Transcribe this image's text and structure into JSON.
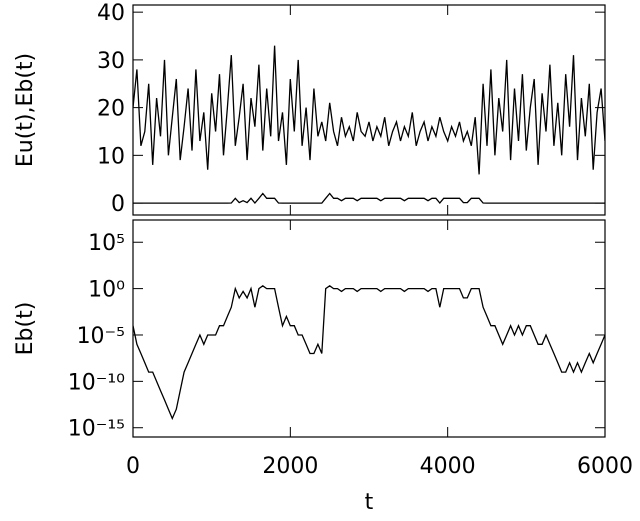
{
  "chart_data": [
    {
      "type": "line",
      "ylabel": "Eu(t),Eb(t)",
      "xlim": [
        0,
        6000
      ],
      "xticks": [
        0,
        2000,
        4000,
        6000
      ],
      "ylim": [
        -2.5,
        41.5
      ],
      "yticks": [
        0,
        10,
        20,
        30,
        40
      ],
      "log": false,
      "x": [
        0,
        50,
        100,
        150,
        200,
        250,
        300,
        350,
        400,
        450,
        500,
        550,
        600,
        650,
        700,
        750,
        800,
        850,
        900,
        950,
        1000,
        1050,
        1100,
        1150,
        1200,
        1250,
        1300,
        1350,
        1400,
        1450,
        1500,
        1550,
        1600,
        1650,
        1700,
        1750,
        1800,
        1850,
        1900,
        1950,
        2000,
        2050,
        2100,
        2150,
        2200,
        2250,
        2300,
        2350,
        2400,
        2450,
        2500,
        2550,
        2600,
        2650,
        2700,
        2750,
        2800,
        2850,
        2900,
        2950,
        3000,
        3050,
        3100,
        3150,
        3200,
        3250,
        3300,
        3350,
        3400,
        3450,
        3500,
        3550,
        3600,
        3650,
        3700,
        3750,
        3800,
        3850,
        3900,
        3950,
        4000,
        4050,
        4100,
        4150,
        4200,
        4250,
        4300,
        4350,
        4400,
        4450,
        4500,
        4550,
        4600,
        4650,
        4700,
        4750,
        4800,
        4850,
        4900,
        4950,
        5000,
        5050,
        5100,
        5150,
        5200,
        5250,
        5300,
        5350,
        5400,
        5450,
        5500,
        5550,
        5600,
        5650,
        5700,
        5750,
        5800,
        5850,
        5900,
        5950,
        6000
      ],
      "series": [
        {
          "name": "Eu",
          "color": "#000000",
          "values": [
            20,
            28,
            12,
            15,
            25,
            8,
            22,
            14,
            30,
            10,
            18,
            26,
            9,
            16,
            24,
            11,
            28,
            13,
            19,
            7,
            23,
            15,
            27,
            10,
            20,
            31,
            12,
            18,
            25,
            9,
            22,
            16,
            29,
            11,
            24,
            14,
            33,
            13,
            19,
            8,
            26,
            15,
            30,
            12,
            20,
            9,
            24,
            14,
            17,
            13,
            21,
            15,
            12,
            18,
            14,
            16,
            13,
            19,
            15,
            14,
            17,
            13,
            16,
            14,
            18,
            12,
            15,
            17,
            13,
            16,
            14,
            19,
            12,
            15,
            17,
            13,
            16,
            14,
            18,
            15,
            13,
            16,
            14,
            17,
            13,
            15,
            12,
            18,
            6,
            25,
            12,
            28,
            10,
            22,
            15,
            30,
            9,
            24,
            13,
            27,
            11,
            20,
            26,
            8,
            23,
            15,
            29,
            12,
            21,
            10,
            27,
            16,
            31,
            9,
            22,
            14,
            25,
            7,
            19,
            24,
            13
          ]
        },
        {
          "name": "Eb",
          "color": "#000000",
          "values": [
            0.0001,
            1e-06,
            1e-07,
            1e-08,
            1e-09,
            1e-09,
            1e-10,
            1e-11,
            1e-12,
            1e-13,
            1e-14,
            1e-13,
            1e-11,
            1e-09,
            1e-08,
            1e-07,
            1e-06,
            1e-05,
            1e-06,
            1e-05,
            1e-05,
            1e-05,
            0.0001,
            0.0001,
            0.001,
            0.01,
            1,
            0.1,
            0.5,
            0.1,
            1,
            0.01,
            1,
            2,
            1,
            1,
            1,
            0.01,
            0.0001,
            0.001,
            0.0001,
            0.0001,
            1e-05,
            1e-05,
            1e-06,
            1e-07,
            1e-07,
            1e-06,
            1e-07,
            1,
            2,
            1,
            1,
            0.5,
            1,
            1,
            1,
            0.5,
            1,
            1,
            1,
            1,
            1,
            0.5,
            1,
            1,
            1,
            1,
            1,
            0.5,
            1,
            1,
            1,
            1,
            1,
            0.5,
            1,
            1,
            0.01,
            1,
            1,
            1,
            1,
            1,
            0.1,
            0.1,
            1,
            1,
            1,
            0.01,
            0.001,
            0.0001,
            0.0001,
            1e-05,
            1e-06,
            1e-05,
            0.0001,
            1e-05,
            0.0001,
            1e-05,
            0.0001,
            0.0001,
            1e-05,
            1e-06,
            1e-06,
            1e-05,
            1e-06,
            1e-07,
            1e-08,
            1e-09,
            1e-09,
            1e-08,
            1e-09,
            1e-08,
            1e-09,
            1e-08,
            1e-07,
            1e-08,
            1e-07,
            1e-06,
            1e-05
          ]
        }
      ]
    },
    {
      "type": "line",
      "ylabel": "Eb(t)",
      "xlabel": "t",
      "xlim": [
        0,
        6000
      ],
      "xticks": [
        0,
        2000,
        4000,
        6000
      ],
      "ylim": [
        1e-16,
        25000000.0
      ],
      "log": true,
      "yticks": [
        {
          "value": 100000,
          "label": "10⁵"
        },
        {
          "value": 1,
          "label": "10⁰"
        },
        {
          "value": 1e-05,
          "label": "10⁻⁵"
        },
        {
          "value": 1e-10,
          "label": "10⁻¹⁰"
        },
        {
          "value": 1e-15,
          "label": "10⁻¹⁵"
        }
      ],
      "x": [
        0,
        50,
        100,
        150,
        200,
        250,
        300,
        350,
        400,
        450,
        500,
        550,
        600,
        650,
        700,
        750,
        800,
        850,
        900,
        950,
        1000,
        1050,
        1100,
        1150,
        1200,
        1250,
        1300,
        1350,
        1400,
        1450,
        1500,
        1550,
        1600,
        1650,
        1700,
        1750,
        1800,
        1850,
        1900,
        1950,
        2000,
        2050,
        2100,
        2150,
        2200,
        2250,
        2300,
        2350,
        2400,
        2450,
        2500,
        2550,
        2600,
        2650,
        2700,
        2750,
        2800,
        2850,
        2900,
        2950,
        3000,
        3050,
        3100,
        3150,
        3200,
        3250,
        3300,
        3350,
        3400,
        3450,
        3500,
        3550,
        3600,
        3650,
        3700,
        3750,
        3800,
        3850,
        3900,
        3950,
        4000,
        4050,
        4100,
        4150,
        4200,
        4250,
        4300,
        4350,
        4400,
        4450,
        4500,
        4550,
        4600,
        4650,
        4700,
        4750,
        4800,
        4850,
        4900,
        4950,
        5000,
        5050,
        5100,
        5150,
        5200,
        5250,
        5300,
        5350,
        5400,
        5450,
        5500,
        5550,
        5600,
        5650,
        5700,
        5750,
        5800,
        5850,
        5900,
        5950,
        6000
      ],
      "series": [
        {
          "name": "Eb",
          "color": "#000000",
          "values": [
            0.0001,
            1e-06,
            1e-07,
            1e-08,
            1e-09,
            1e-09,
            1e-10,
            1e-11,
            1e-12,
            1e-13,
            1e-14,
            1e-13,
            1e-11,
            1e-09,
            1e-08,
            1e-07,
            1e-06,
            1e-05,
            1e-06,
            1e-05,
            1e-05,
            1e-05,
            0.0001,
            0.0001,
            0.001,
            0.01,
            1,
            0.1,
            0.5,
            0.1,
            1,
            0.01,
            1,
            2,
            1,
            1,
            1,
            0.01,
            0.0001,
            0.001,
            0.0001,
            0.0001,
            1e-05,
            1e-05,
            1e-06,
            1e-07,
            1e-07,
            1e-06,
            1e-07,
            1,
            2,
            1,
            1,
            0.5,
            1,
            1,
            1,
            0.5,
            1,
            1,
            1,
            1,
            1,
            0.5,
            1,
            1,
            1,
            1,
            1,
            0.5,
            1,
            1,
            1,
            1,
            1,
            0.5,
            1,
            1,
            0.01,
            1,
            1,
            1,
            1,
            1,
            0.1,
            0.1,
            1,
            1,
            1,
            0.01,
            0.001,
            0.0001,
            0.0001,
            1e-05,
            1e-06,
            1e-05,
            0.0001,
            1e-05,
            0.0001,
            1e-05,
            0.0001,
            0.0001,
            1e-05,
            1e-06,
            1e-06,
            1e-05,
            1e-06,
            1e-07,
            1e-08,
            1e-09,
            1e-09,
            1e-08,
            1e-09,
            1e-08,
            1e-09,
            1e-08,
            1e-07,
            1e-08,
            1e-07,
            1e-06,
            1e-05
          ]
        }
      ]
    }
  ]
}
